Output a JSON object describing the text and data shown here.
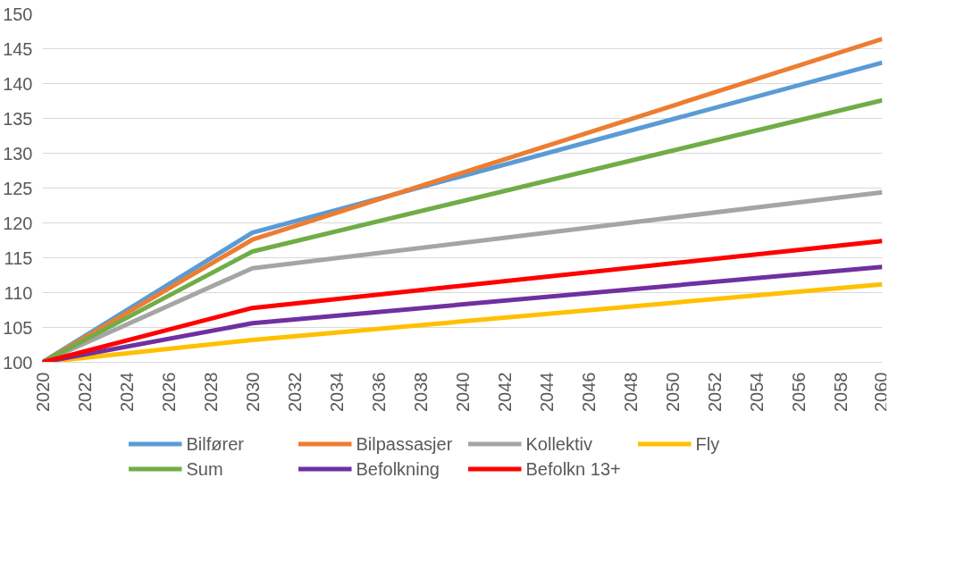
{
  "chart_data": {
    "type": "line",
    "x": [
      2020,
      2030,
      2060
    ],
    "series": [
      {
        "name": "Bilfører",
        "color": "#5b9bd5",
        "values": [
          100,
          118.6,
          143.0
        ]
      },
      {
        "name": "Bilpassasjer",
        "color": "#ed7d31",
        "values": [
          100,
          117.6,
          146.4
        ]
      },
      {
        "name": "Kollektiv",
        "color": "#a5a5a5",
        "values": [
          100,
          113.5,
          124.4
        ]
      },
      {
        "name": "Fly",
        "color": "#ffc000",
        "values": [
          100,
          103.2,
          111.2
        ]
      },
      {
        "name": "Sum",
        "color": "#70ad47",
        "values": [
          100,
          115.9,
          137.6
        ]
      },
      {
        "name": "Befolkning",
        "color": "#7030a0",
        "values": [
          100,
          105.6,
          113.7
        ]
      },
      {
        "name": "Befolkn 13+",
        "color": "#ff0000",
        "values": [
          100,
          107.8,
          117.4
        ]
      }
    ],
    "xlim": [
      2020,
      2060
    ],
    "xticks": [
      2020,
      2022,
      2024,
      2026,
      2028,
      2030,
      2032,
      2034,
      2036,
      2038,
      2040,
      2042,
      2044,
      2046,
      2048,
      2050,
      2052,
      2054,
      2056,
      2058,
      2060
    ],
    "ylim": [
      100,
      150
    ],
    "yticks": [
      100,
      105,
      110,
      115,
      120,
      125,
      130,
      135,
      140,
      145,
      150
    ],
    "grid": "y",
    "legend": "bottom",
    "marker": "none",
    "line_style": "solid"
  }
}
